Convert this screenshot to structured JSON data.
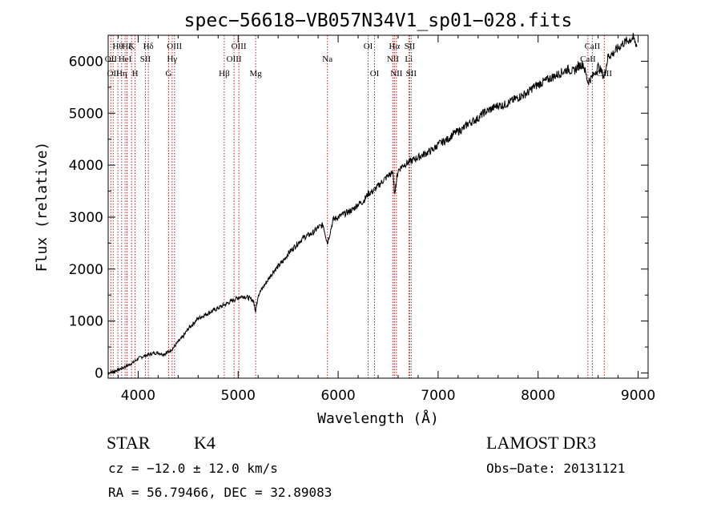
{
  "chart_data": {
    "type": "line",
    "title": "spec−56618−VB057N34V1_sp01−028.fits",
    "xlabel": "Wavelength (Å)",
    "ylabel": "Flux (relative)",
    "xlim": [
      3700,
      9100
    ],
    "ylim": [
      -100,
      6500
    ],
    "xticks": [
      4000,
      5000,
      6000,
      7000,
      8000,
      9000
    ],
    "xtick_labels": [
      "4000",
      "5000",
      "6000",
      "7000",
      "8000",
      "9000"
    ],
    "yticks": [
      0,
      1000,
      2000,
      3000,
      4000,
      5000,
      6000
    ],
    "ytick_labels": [
      "0",
      "1000",
      "2000",
      "3000",
      "4000",
      "5000",
      "6000"
    ],
    "grid": false,
    "series": [
      {
        "name": "spectrum",
        "color": "#000000",
        "x": [
          3700,
          3750,
          3800,
          3850,
          3900,
          3950,
          4000,
          4050,
          4100,
          4150,
          4200,
          4250,
          4300,
          4350,
          4400,
          4450,
          4500,
          4550,
          4600,
          4650,
          4700,
          4750,
          4800,
          4850,
          4900,
          4950,
          5000,
          5050,
          5100,
          5150,
          5175,
          5200,
          5250,
          5300,
          5350,
          5400,
          5450,
          5500,
          5550,
          5600,
          5650,
          5700,
          5750,
          5800,
          5850,
          5893,
          5950,
          6000,
          6050,
          6100,
          6150,
          6200,
          6250,
          6300,
          6350,
          6400,
          6450,
          6500,
          6550,
          6563,
          6600,
          6650,
          6700,
          6750,
          6800,
          6850,
          6900,
          6950,
          7000,
          7050,
          7100,
          7150,
          7200,
          7250,
          7300,
          7350,
          7400,
          7450,
          7500,
          7550,
          7600,
          7650,
          7700,
          7750,
          7800,
          7850,
          7900,
          7950,
          8000,
          8050,
          8100,
          8150,
          8200,
          8250,
          8300,
          8350,
          8400,
          8450,
          8498,
          8542,
          8600,
          8662,
          8700,
          8750,
          8800,
          8850,
          8900,
          8950,
          8990
        ],
        "y": [
          0,
          30,
          60,
          100,
          150,
          200,
          280,
          320,
          350,
          380,
          390,
          360,
          400,
          480,
          600,
          700,
          850,
          950,
          1050,
          1100,
          1150,
          1200,
          1250,
          1300,
          1350,
          1400,
          1450,
          1480,
          1450,
          1400,
          1200,
          1500,
          1650,
          1800,
          1950,
          2050,
          2150,
          2300,
          2400,
          2500,
          2600,
          2650,
          2700,
          2800,
          2850,
          2500,
          2950,
          3000,
          3050,
          3100,
          3150,
          3250,
          3300,
          3450,
          3500,
          3600,
          3700,
          3800,
          3850,
          3450,
          3900,
          4000,
          4050,
          4100,
          4150,
          4200,
          4250,
          4300,
          4400,
          4450,
          4500,
          4600,
          4650,
          4700,
          4800,
          4850,
          4900,
          5000,
          5050,
          5100,
          5150,
          5150,
          5200,
          5250,
          5300,
          5350,
          5400,
          5500,
          5550,
          5600,
          5650,
          5700,
          5750,
          5800,
          5850,
          5800,
          5900,
          5950,
          5600,
          5700,
          5900,
          5700,
          6100,
          6150,
          6250,
          6350,
          6400,
          6450,
          6300
        ]
      }
    ],
    "lines": [
      {
        "wavelength": 3727,
        "label": "OII",
        "row": 2
      },
      {
        "wavelength": 3750,
        "label": "OII",
        "row": 3
      },
      {
        "wavelength": 3797,
        "label": "Hθ",
        "row": 1
      },
      {
        "wavelength": 3835,
        "label": "Hη",
        "row": 3
      },
      {
        "wavelength": 3869,
        "label": "HeI",
        "row": 2
      },
      {
        "wavelength": 3889,
        "label": "Hζ",
        "row": 1
      },
      {
        "wavelength": 3934,
        "label": "K",
        "row": 1
      },
      {
        "wavelength": 3969,
        "label": "H",
        "row": 3
      },
      {
        "wavelength": 4072,
        "label": "SII",
        "row": 2
      },
      {
        "wavelength": 4102,
        "label": "Hδ",
        "row": 1
      },
      {
        "wavelength": 4305,
        "label": "G",
        "row": 3
      },
      {
        "wavelength": 4340,
        "label": "Hγ",
        "row": 2
      },
      {
        "wavelength": 4363,
        "label": "OIII",
        "row": 1
      },
      {
        "wavelength": 4861,
        "label": "Hβ",
        "row": 3
      },
      {
        "wavelength": 4959,
        "label": "OIII",
        "row": 2
      },
      {
        "wavelength": 5007,
        "label": "OIII",
        "row": 1
      },
      {
        "wavelength": 5175,
        "label": "Mg",
        "row": 3
      },
      {
        "wavelength": 5893,
        "label": "Na",
        "row": 2
      },
      {
        "wavelength": 6300,
        "label": "OI",
        "row": 1
      },
      {
        "wavelength": 6364,
        "label": "OI",
        "row": 3
      },
      {
        "wavelength": 6548,
        "label": "NII",
        "row": 2
      },
      {
        "wavelength": 6563,
        "label": "Hα",
        "row": 1
      },
      {
        "wavelength": 6583,
        "label": "NII",
        "row": 3
      },
      {
        "wavelength": 6707,
        "label": "Li",
        "row": 2
      },
      {
        "wavelength": 6716,
        "label": "SII",
        "row": 1
      },
      {
        "wavelength": 6731,
        "label": "SII",
        "row": 3
      },
      {
        "wavelength": 8498,
        "label": "CaII",
        "row": 2
      },
      {
        "wavelength": 8542,
        "label": "CaII",
        "row": 1
      },
      {
        "wavelength": 8662,
        "label": "CaII",
        "row": 3
      }
    ],
    "line_color": "#b22222"
  },
  "info": {
    "object_class": "STAR",
    "subclass": "K4",
    "survey": "LAMOST DR3",
    "cz": "cz = −12.0 ± 12.0 km/s",
    "obs_date": "Obs−Date: 20131121",
    "coords": "RA =  56.79466, DEC =  32.89083"
  }
}
